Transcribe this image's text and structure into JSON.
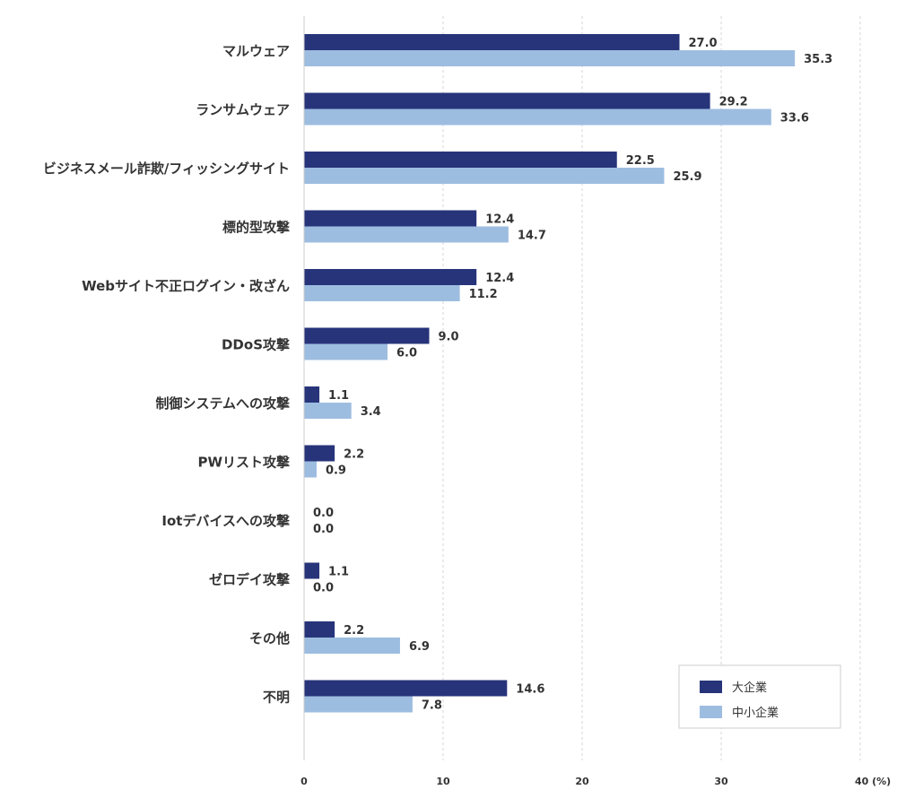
{
  "chart_data": {
    "type": "bar",
    "orientation": "horizontal",
    "categories": [
      "マルウェア",
      "ランサムウェア",
      "ビジネスメール詐欺/フィッシングサイト",
      "標的型攻撃",
      "Webサイト不正ログイン・改ざん",
      "DDoS攻撃",
      "制御システムへの攻撃",
      "PWリスト攻撃",
      "Iotデバイスへの攻撃",
      "ゼロデイ攻撃",
      "その他",
      "不明"
    ],
    "series": [
      {
        "name": "大企業",
        "color": "#27347a",
        "values": [
          27.0,
          29.2,
          22.5,
          12.4,
          12.4,
          9.0,
          1.1,
          2.2,
          0.0,
          1.1,
          2.2,
          14.6
        ],
        "labels": [
          "27.0",
          "29.2",
          "22.5",
          "12.4",
          "12.4",
          "9.0",
          "1.1",
          "2.2",
          "0.0",
          "1.1",
          "2.2",
          "14.6"
        ]
      },
      {
        "name": "中小企業",
        "color": "#9dbde0",
        "values": [
          35.3,
          33.6,
          25.9,
          14.7,
          11.2,
          6.0,
          3.4,
          0.9,
          0.0,
          0.0,
          6.9,
          7.8
        ],
        "labels": [
          "35.3",
          "33.6",
          "25.9",
          "14.7",
          "11.2",
          "6.0",
          "3.4",
          "0.9",
          "0.0",
          "0.0",
          "6.9",
          "7.8"
        ]
      }
    ],
    "xlim": [
      0,
      40
    ],
    "ticks": [
      "0",
      "10",
      "20",
      "30",
      "40"
    ],
    "tick_values": [
      0,
      10,
      20,
      30,
      40
    ],
    "unit": "(%)",
    "grid": true,
    "legend_position": "bottom-right"
  }
}
